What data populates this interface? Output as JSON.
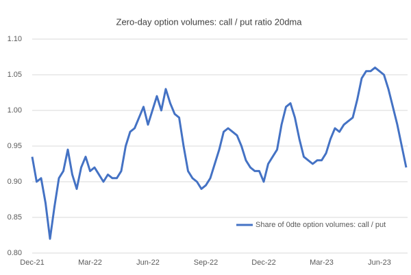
{
  "chart_data": {
    "type": "line",
    "title": "Zero-day option volumes: call / put ratio 20dma",
    "categories": [
      "Dec-21",
      null,
      null,
      null,
      null,
      null,
      null,
      null,
      null,
      null,
      null,
      null,
      null,
      "Mar-22",
      null,
      null,
      null,
      null,
      null,
      null,
      null,
      null,
      null,
      null,
      null,
      null,
      "Jun-22",
      null,
      null,
      null,
      null,
      null,
      null,
      null,
      null,
      null,
      null,
      null,
      null,
      "Sep-22",
      null,
      null,
      null,
      null,
      null,
      null,
      null,
      null,
      null,
      null,
      null,
      null,
      "Dec-22",
      null,
      null,
      null,
      null,
      null,
      null,
      null,
      null,
      null,
      null,
      null,
      null,
      "Mar-23",
      null,
      null,
      null,
      null,
      null,
      null,
      null,
      null,
      null,
      null,
      null,
      null,
      "Jun-23",
      null,
      null,
      null,
      null,
      null,
      null
    ],
    "series": [
      {
        "name": "Share of 0dte option volumes: call / put",
        "color": "#4472c4",
        "values": [
          0.935,
          0.9,
          0.905,
          0.87,
          0.82,
          0.865,
          0.905,
          0.915,
          0.945,
          0.91,
          0.89,
          0.92,
          0.935,
          0.915,
          0.92,
          0.91,
          0.9,
          0.91,
          0.905,
          0.905,
          0.915,
          0.95,
          0.97,
          0.975,
          0.99,
          1.005,
          0.98,
          1.0,
          1.02,
          1.0,
          1.03,
          1.01,
          0.995,
          0.99,
          0.95,
          0.915,
          0.905,
          0.9,
          0.89,
          0.895,
          0.905,
          0.925,
          0.945,
          0.97,
          0.975,
          0.97,
          0.965,
          0.95,
          0.93,
          0.92,
          0.915,
          0.915,
          0.9,
          0.925,
          0.935,
          0.945,
          0.98,
          1.005,
          1.01,
          0.99,
          0.96,
          0.935,
          0.93,
          0.925,
          0.93,
          0.93,
          0.94,
          0.96,
          0.975,
          0.97,
          0.98,
          0.985,
          0.99,
          1.015,
          1.045,
          1.055,
          1.055,
          1.06,
          1.055,
          1.05,
          1.03,
          1.005,
          0.98,
          0.95,
          0.92
        ]
      }
    ],
    "ylim": [
      0.8,
      1.1
    ],
    "yticks": [
      {
        "value": 0.8,
        "label": "0.80"
      },
      {
        "value": 0.85,
        "label": "0.85"
      },
      {
        "value": 0.9,
        "label": "0.90"
      },
      {
        "value": 0.95,
        "label": "0.95"
      },
      {
        "value": 1.0,
        "label": "1.00"
      },
      {
        "value": 1.05,
        "label": "1.05"
      },
      {
        "value": 1.1,
        "label": "1.10"
      }
    ],
    "grid": true,
    "legend": "lower right"
  }
}
